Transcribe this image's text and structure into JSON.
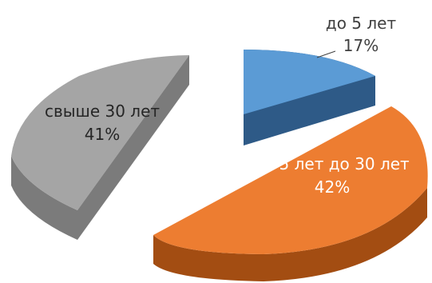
{
  "chart_data": {
    "type": "pie",
    "style": "3d-exploded",
    "slices": [
      {
        "label": "до 5 лет",
        "value": 17,
        "value_label": "17%",
        "color": "#5B9BD5",
        "side_color": "#2E5A87"
      },
      {
        "label": "от 5 лет до 30 лет",
        "value": 42,
        "value_label": "42%",
        "color": "#ED7D31",
        "side_color": "#A34D12"
      },
      {
        "label": "свыше 30 лет",
        "value": 41,
        "value_label": "41%",
        "color": "#A5A5A5",
        "side_color": "#7B7B7B"
      }
    ]
  }
}
